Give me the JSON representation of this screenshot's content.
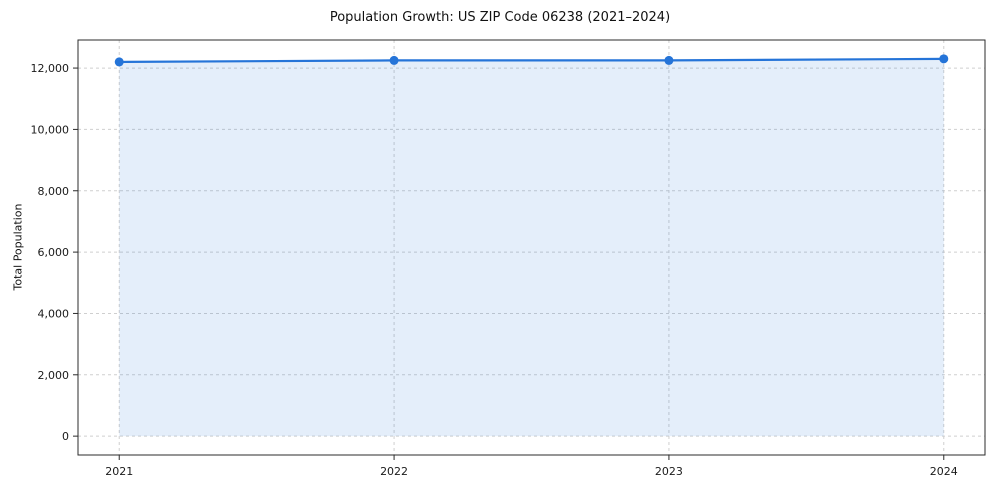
{
  "chart": {
    "title": "Population Growth: US ZIP Code 06238 (2021–2024)",
    "ylabel": "Total Population"
  },
  "chart_data": {
    "type": "line",
    "title": "Population Growth: US ZIP Code 06238 (2021–2024)",
    "xlabel": "",
    "ylabel": "Total Population",
    "x": [
      2021,
      2022,
      2023,
      2024
    ],
    "series": [
      {
        "name": "Total Population",
        "values": [
          12200,
          12250,
          12250,
          12300
        ]
      }
    ],
    "xticks": [
      2021,
      2022,
      2023,
      2024
    ],
    "yticks": [
      0,
      2000,
      4000,
      6000,
      8000,
      10000,
      12000
    ],
    "xlim": [
      2020.85,
      2024.15
    ],
    "ylim": [
      -615,
      12915
    ],
    "grid": true,
    "grid_style": "dashed",
    "legend": false,
    "line_color": "#2574d8",
    "marker": "circle",
    "marker_size": 4.5,
    "fill_under_line": true,
    "fill_alpha": 0.12
  }
}
